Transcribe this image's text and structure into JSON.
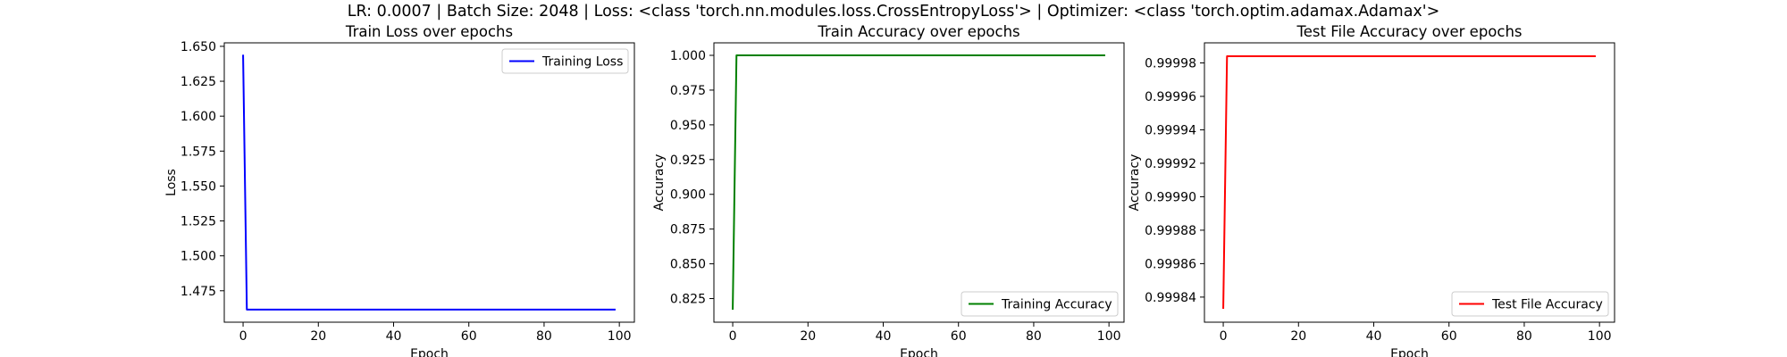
{
  "suptitle": "LR: 0.0007 | Batch Size: 2048 | Loss: <class 'torch.nn.modules.loss.CrossEntropyLoss'> | Optimizer: <class 'torch.optim.adamax.Adamax'>",
  "chart_data": [
    {
      "type": "line",
      "title": "Train Loss over epochs",
      "xlabel": "Epoch",
      "ylabel": "Loss",
      "xlim": [
        -5,
        104
      ],
      "ylim": [
        1.4525,
        1.6525
      ],
      "xticks": [
        0,
        20,
        40,
        60,
        80,
        100
      ],
      "yticks": [
        1.475,
        1.5,
        1.525,
        1.55,
        1.575,
        1.6,
        1.625,
        1.65
      ],
      "ytick_decimals": 3,
      "legend": "top-right",
      "grid": false,
      "series": [
        {
          "name": "Training Loss",
          "color": "#0000ff",
          "x": [
            0,
            1,
            99
          ],
          "y": [
            1.644,
            1.4615,
            1.4615
          ]
        }
      ]
    },
    {
      "type": "line",
      "title": "Train Accuracy over epochs",
      "xlabel": "Epoch",
      "ylabel": "Accuracy",
      "xlim": [
        -5,
        104
      ],
      "ylim": [
        0.808,
        1.009
      ],
      "xticks": [
        0,
        20,
        40,
        60,
        80,
        100
      ],
      "yticks": [
        0.825,
        0.85,
        0.875,
        0.9,
        0.925,
        0.95,
        0.975,
        1.0
      ],
      "ytick_decimals": 3,
      "legend": "bottom-right",
      "grid": false,
      "series": [
        {
          "name": "Training Accuracy",
          "color": "#008000",
          "x": [
            0,
            1,
            99
          ],
          "y": [
            0.817,
            1.0,
            1.0
          ]
        }
      ]
    },
    {
      "type": "line",
      "title": "Test File Accuracy over epochs",
      "xlabel": "Epoch",
      "ylabel": "Accuracy",
      "xlim": [
        -5,
        104
      ],
      "ylim": [
        0.999825,
        0.999992
      ],
      "xticks": [
        0,
        20,
        40,
        60,
        80,
        100
      ],
      "yticks": [
        0.99984,
        0.99986,
        0.99988,
        0.9999,
        0.99992,
        0.99994,
        0.99996,
        0.99998
      ],
      "ytick_decimals": 5,
      "legend": "bottom-right",
      "grid": false,
      "series": [
        {
          "name": "Test File Accuracy",
          "color": "#ff0000",
          "x": [
            0,
            1,
            99
          ],
          "y": [
            0.999833,
            0.999984,
            0.999984
          ]
        }
      ]
    }
  ]
}
